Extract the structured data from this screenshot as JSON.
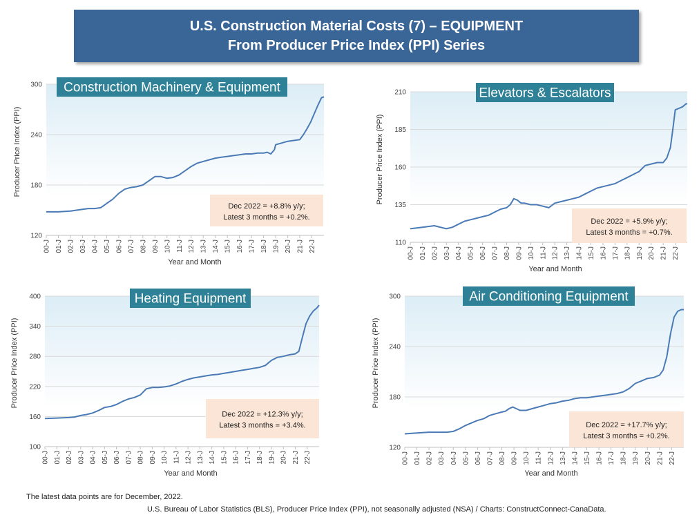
{
  "header": {
    "title_line1": "U.S. Construction Material Costs (7) – EQUIPMENT",
    "title_line2": "From Producer Price Index (PPI) Series"
  },
  "footnotes": {
    "latest": "The latest data points are for December, 2022.",
    "source": "U.S. Bureau of Labor Statistics (BLS), Producer Price Index (PPI), not seasonally adjusted (NSA) / Charts: ConstructConnect-CanaData."
  },
  "colors": {
    "line": "#4a7ab5",
    "title_box": "#2e8196",
    "plot_gradient_top": "#dcedf6",
    "annotation_box": "#fbe5d6",
    "banner": "#3a6597"
  },
  "chart_data": [
    {
      "type": "line",
      "title": "Construction Machinery & Equipment",
      "xlabel": "Year and Month",
      "ylabel": "Producer Price Index (PPI)",
      "ylim": [
        120,
        300
      ],
      "yticks": [
        "120",
        "180",
        "240",
        "300"
      ],
      "xticks": [
        "00-J",
        "01-J",
        "02-J",
        "03-J",
        "04-J",
        "05-J",
        "06-J",
        "07-J",
        "08-J",
        "09-J",
        "10-J",
        "11-J",
        "12-J",
        "13-J",
        "14-J",
        "15-J",
        "16-J",
        "17-J",
        "18-J",
        "19-J",
        "20-J",
        "21-J",
        "22-J"
      ],
      "annotation": [
        "Dec 2022 = +8.8% y/y;",
        "Latest 3 months = +0.2%."
      ],
      "x": [
        2000.0,
        2001.0,
        2002.0,
        2002.5,
        2003.0,
        2003.5,
        2004.0,
        2004.5,
        2005.0,
        2005.5,
        2006.0,
        2006.5,
        2007.0,
        2007.5,
        2008.0,
        2008.5,
        2009.0,
        2009.5,
        2010.0,
        2010.5,
        2011.0,
        2011.5,
        2012.0,
        2012.5,
        2013.0,
        2013.5,
        2014.0,
        2014.5,
        2015.0,
        2015.5,
        2016.0,
        2016.5,
        2017.0,
        2017.5,
        2018.0,
        2018.3,
        2018.6,
        2018.9,
        2019.0,
        2019.5,
        2020.0,
        2020.5,
        2021.0,
        2021.3,
        2021.6,
        2021.9,
        2022.2,
        2022.5,
        2022.8,
        2023.0
      ],
      "y": [
        148,
        148,
        149,
        150,
        151,
        152,
        152,
        153,
        158,
        163,
        170,
        175,
        177,
        178,
        180,
        185,
        190,
        190,
        188,
        189,
        192,
        197,
        202,
        206,
        208,
        210,
        212,
        213,
        214,
        215,
        216,
        217,
        217,
        218,
        218,
        219,
        217,
        222,
        228,
        230,
        232,
        233,
        234,
        240,
        247,
        255,
        265,
        275,
        284,
        285
      ]
    },
    {
      "type": "line",
      "title": "Elevators & Escalators",
      "xlabel": "Year and Month",
      "ylabel": "Producer Price Index (PPI)",
      "ylim": [
        110,
        210
      ],
      "yticks": [
        "110",
        "135",
        "160",
        "185",
        "210"
      ],
      "xticks": [
        "00-J",
        "01-J",
        "02-J",
        "03-J",
        "04-J",
        "05-J",
        "06-J",
        "07-J",
        "08-J",
        "09-J",
        "10-J",
        "11-J",
        "12-J",
        "13-J",
        "14-J",
        "15-J",
        "16-J",
        "17-J",
        "18-J",
        "19-J",
        "20-J",
        "21-J",
        "22-J"
      ],
      "annotation": [
        "Dec 2022 = +5.9% y/y;",
        "Latest 3 months = +0.7%."
      ],
      "x": [
        2000.0,
        2001.0,
        2002.0,
        2002.5,
        2003.0,
        2003.5,
        2004.0,
        2004.5,
        2005.0,
        2005.5,
        2006.0,
        2006.5,
        2007.0,
        2007.5,
        2008.0,
        2008.3,
        2008.6,
        2008.9,
        2009.2,
        2009.5,
        2010.0,
        2010.5,
        2011.0,
        2011.5,
        2012.0,
        2012.5,
        2013.0,
        2013.5,
        2014.0,
        2014.5,
        2015.0,
        2015.5,
        2016.0,
        2016.5,
        2017.0,
        2017.5,
        2018.0,
        2018.5,
        2019.0,
        2019.5,
        2020.0,
        2020.5,
        2021.0,
        2021.3,
        2021.6,
        2021.8,
        2022.0,
        2022.3,
        2022.6,
        2022.9,
        2023.0
      ],
      "y": [
        119,
        120,
        121,
        120,
        119,
        120,
        122,
        124,
        125,
        126,
        127,
        128,
        130,
        132,
        133,
        135,
        139,
        138,
        136,
        136,
        135,
        135,
        134,
        133,
        136,
        137,
        138,
        139,
        140,
        142,
        144,
        146,
        147,
        148,
        149,
        151,
        153,
        155,
        157,
        161,
        162,
        163,
        163,
        166,
        173,
        185,
        198,
        199,
        200,
        202,
        202
      ]
    },
    {
      "type": "line",
      "title": "Heating Equipment",
      "xlabel": "Year and Month",
      "ylabel": "Producer Price Index (PPI)",
      "ylim": [
        100,
        400
      ],
      "yticks": [
        "100",
        "160",
        "220",
        "280",
        "340",
        "400"
      ],
      "xticks": [
        "00-J",
        "01-J",
        "02-J",
        "03-J",
        "04-J",
        "05-J",
        "06-J",
        "07-J",
        "08-J",
        "09-J",
        "10-J",
        "11-J",
        "12-J",
        "13-J",
        "14-J",
        "15-J",
        "16-J",
        "17-J",
        "18-J",
        "19-J",
        "20-J",
        "21-J",
        "22-J"
      ],
      "annotation": [
        "Dec 2022 = +12.3% y/y;",
        "Latest 3 months = +3.4%."
      ],
      "x": [
        2000.0,
        2001.0,
        2002.0,
        2002.5,
        2003.0,
        2003.5,
        2004.0,
        2004.5,
        2005.0,
        2005.5,
        2006.0,
        2006.5,
        2007.0,
        2007.5,
        2008.0,
        2008.5,
        2009.0,
        2009.5,
        2010.0,
        2010.5,
        2011.0,
        2011.5,
        2012.0,
        2012.5,
        2013.0,
        2013.5,
        2014.0,
        2014.5,
        2015.0,
        2015.5,
        2016.0,
        2016.5,
        2017.0,
        2017.5,
        2018.0,
        2018.5,
        2019.0,
        2019.5,
        2020.0,
        2020.5,
        2021.0,
        2021.3,
        2021.6,
        2021.9,
        2022.2,
        2022.5,
        2022.8,
        2023.0
      ],
      "y": [
        156,
        157,
        158,
        159,
        162,
        164,
        167,
        172,
        178,
        180,
        184,
        190,
        195,
        198,
        203,
        215,
        218,
        218,
        219,
        221,
        225,
        230,
        234,
        237,
        239,
        241,
        243,
        244,
        246,
        248,
        250,
        252,
        254,
        256,
        258,
        262,
        272,
        278,
        280,
        283,
        285,
        290,
        318,
        345,
        360,
        370,
        376,
        382
      ]
    },
    {
      "type": "line",
      "title": "Air Conditioning Equipment",
      "xlabel": "Year and Month",
      "ylabel": "Producer Price Index (PPI)",
      "ylim": [
        120,
        300
      ],
      "yticks": [
        "120",
        "180",
        "240",
        "300"
      ],
      "xticks": [
        "00-J",
        "01-J",
        "02-J",
        "03-J",
        "04-J",
        "05-J",
        "06-J",
        "07-J",
        "08-J",
        "09-J",
        "10-J",
        "11-J",
        "12-J",
        "13-J",
        "14-J",
        "15-J",
        "16-J",
        "17-J",
        "18-J",
        "19-J",
        "20-J",
        "21-J",
        "22-J"
      ],
      "annotation": [
        "Dec 2022 = +17.7% y/y;",
        "Latest 3 months = +0.2%."
      ],
      "x": [
        2000.0,
        2001.0,
        2002.0,
        2002.5,
        2003.0,
        2003.5,
        2004.0,
        2004.5,
        2005.0,
        2005.5,
        2006.0,
        2006.5,
        2007.0,
        2007.5,
        2008.0,
        2008.3,
        2008.6,
        2008.9,
        2009.2,
        2009.5,
        2010.0,
        2010.5,
        2011.0,
        2011.5,
        2012.0,
        2012.5,
        2013.0,
        2013.5,
        2014.0,
        2014.5,
        2015.0,
        2015.5,
        2016.0,
        2016.5,
        2017.0,
        2017.5,
        2018.0,
        2018.5,
        2019.0,
        2019.5,
        2020.0,
        2020.5,
        2021.0,
        2021.3,
        2021.6,
        2021.9,
        2022.2,
        2022.5,
        2022.8,
        2023.0
      ],
      "y": [
        136,
        137,
        138,
        138,
        138,
        138,
        139,
        142,
        146,
        149,
        152,
        154,
        158,
        160,
        162,
        163,
        166,
        168,
        166,
        164,
        164,
        166,
        168,
        170,
        172,
        173,
        175,
        176,
        178,
        179,
        179,
        180,
        181,
        182,
        183,
        184,
        186,
        190,
        196,
        199,
        202,
        203,
        206,
        212,
        228,
        255,
        275,
        282,
        284,
        284
      ]
    }
  ]
}
